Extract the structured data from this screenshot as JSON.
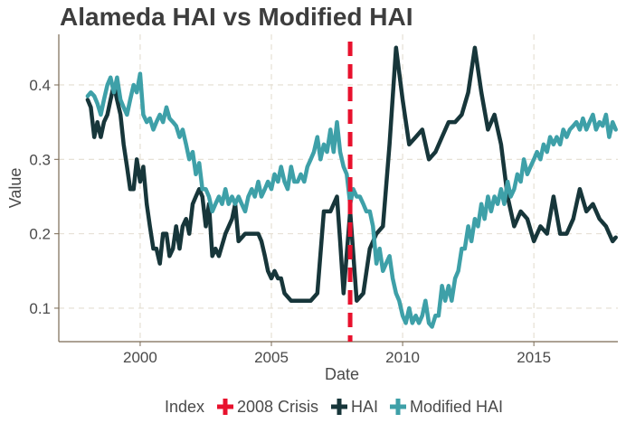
{
  "chart_data": {
    "type": "line",
    "title": "Alameda HAI vs Modified HAI",
    "xlabel": "Date",
    "ylabel": "Value",
    "xlim": [
      1996.9,
      2018.2
    ],
    "ylim": [
      0.055,
      0.468
    ],
    "x_ticks": [
      2000,
      2005,
      2010,
      2015
    ],
    "x_tick_labels": [
      "2000",
      "2005",
      "2010",
      "2015"
    ],
    "y_ticks": [
      0.1,
      0.2,
      0.3,
      0.4
    ],
    "y_tick_labels": [
      "0.1",
      "0.2",
      "0.3",
      "0.4"
    ],
    "grid": true,
    "legend": {
      "position": "bottom",
      "title": "Index",
      "entries": [
        "2008 Crisis",
        "HAI",
        "Modified HAI"
      ]
    },
    "annotations": [
      {
        "name": "2008 Crisis",
        "type": "vertical-line",
        "x": 2008.0,
        "style": "dashed",
        "color": "#e8112d"
      }
    ],
    "series": [
      {
        "name": "HAI",
        "color": "#17363a",
        "points": [
          [
            1998.0,
            0.38
          ],
          [
            1998.12,
            0.37
          ],
          [
            1998.25,
            0.33
          ],
          [
            1998.37,
            0.35
          ],
          [
            1998.5,
            0.33
          ],
          [
            1998.62,
            0.35
          ],
          [
            1998.75,
            0.36
          ],
          [
            1998.87,
            0.38
          ],
          [
            1999.0,
            0.4
          ],
          [
            1999.12,
            0.38
          ],
          [
            1999.25,
            0.36
          ],
          [
            1999.37,
            0.32
          ],
          [
            1999.5,
            0.29
          ],
          [
            1999.62,
            0.26
          ],
          [
            1999.75,
            0.26
          ],
          [
            1999.87,
            0.3
          ],
          [
            2000.0,
            0.27
          ],
          [
            2000.12,
            0.29
          ],
          [
            2000.25,
            0.24
          ],
          [
            2000.37,
            0.21
          ],
          [
            2000.5,
            0.18
          ],
          [
            2000.62,
            0.18
          ],
          [
            2000.75,
            0.16
          ],
          [
            2000.87,
            0.2
          ],
          [
            2001.0,
            0.2
          ],
          [
            2001.12,
            0.17
          ],
          [
            2001.25,
            0.18
          ],
          [
            2001.37,
            0.21
          ],
          [
            2001.5,
            0.18
          ],
          [
            2001.62,
            0.21
          ],
          [
            2001.75,
            0.22
          ],
          [
            2001.87,
            0.2
          ],
          [
            2002.0,
            0.24
          ],
          [
            2002.12,
            0.25
          ],
          [
            2002.25,
            0.26
          ],
          [
            2002.37,
            0.25
          ],
          [
            2002.5,
            0.21
          ],
          [
            2002.62,
            0.24
          ],
          [
            2002.75,
            0.17
          ],
          [
            2002.87,
            0.18
          ],
          [
            2003.0,
            0.17
          ],
          [
            2003.25,
            0.2
          ],
          [
            2003.5,
            0.22
          ],
          [
            2003.62,
            0.24
          ],
          [
            2003.75,
            0.19
          ],
          [
            2004.0,
            0.2
          ],
          [
            2004.25,
            0.2
          ],
          [
            2004.5,
            0.2
          ],
          [
            2004.62,
            0.19
          ],
          [
            2004.75,
            0.17
          ],
          [
            2004.87,
            0.15
          ],
          [
            2005.0,
            0.14
          ],
          [
            2005.12,
            0.15
          ],
          [
            2005.25,
            0.14
          ],
          [
            2005.37,
            0.14
          ],
          [
            2005.5,
            0.12
          ],
          [
            2005.75,
            0.11
          ],
          [
            2006.0,
            0.11
          ],
          [
            2006.25,
            0.11
          ],
          [
            2006.5,
            0.11
          ],
          [
            2006.75,
            0.12
          ],
          [
            2007.0,
            0.23
          ],
          [
            2007.25,
            0.23
          ],
          [
            2007.5,
            0.25
          ],
          [
            2007.62,
            0.19
          ],
          [
            2007.75,
            0.12
          ],
          [
            2008.0,
            0.23
          ],
          [
            2008.25,
            0.11
          ],
          [
            2008.5,
            0.12
          ],
          [
            2008.75,
            0.18
          ],
          [
            2009.0,
            0.2
          ],
          [
            2009.25,
            0.21
          ],
          [
            2009.5,
            0.32
          ],
          [
            2009.75,
            0.45
          ],
          [
            2010.0,
            0.38
          ],
          [
            2010.25,
            0.32
          ],
          [
            2010.5,
            0.33
          ],
          [
            2010.75,
            0.34
          ],
          [
            2011.0,
            0.3
          ],
          [
            2011.25,
            0.31
          ],
          [
            2011.5,
            0.33
          ],
          [
            2011.75,
            0.35
          ],
          [
            2012.0,
            0.35
          ],
          [
            2012.25,
            0.36
          ],
          [
            2012.5,
            0.39
          ],
          [
            2012.75,
            0.45
          ],
          [
            2013.0,
            0.39
          ],
          [
            2013.25,
            0.34
          ],
          [
            2013.5,
            0.36
          ],
          [
            2013.75,
            0.32
          ],
          [
            2014.0,
            0.25
          ],
          [
            2014.25,
            0.21
          ],
          [
            2014.5,
            0.23
          ],
          [
            2014.75,
            0.22
          ],
          [
            2015.0,
            0.19
          ],
          [
            2015.25,
            0.21
          ],
          [
            2015.5,
            0.2
          ],
          [
            2015.75,
            0.25
          ],
          [
            2016.0,
            0.2
          ],
          [
            2016.25,
            0.2
          ],
          [
            2016.5,
            0.22
          ],
          [
            2016.75,
            0.26
          ],
          [
            2017.0,
            0.23
          ],
          [
            2017.25,
            0.24
          ],
          [
            2017.5,
            0.22
          ],
          [
            2017.75,
            0.21
          ],
          [
            2018.0,
            0.19
          ],
          [
            2018.12,
            0.195
          ]
        ]
      },
      {
        "name": "Modified HAI",
        "color": "#3ea0a8",
        "points": [
          [
            1998.0,
            0.385
          ],
          [
            1998.12,
            0.39
          ],
          [
            1998.25,
            0.385
          ],
          [
            1998.37,
            0.375
          ],
          [
            1998.5,
            0.36
          ],
          [
            1998.62,
            0.38
          ],
          [
            1998.75,
            0.4
          ],
          [
            1998.87,
            0.41
          ],
          [
            1999.0,
            0.39
          ],
          [
            1999.12,
            0.41
          ],
          [
            1999.25,
            0.38
          ],
          [
            1999.37,
            0.37
          ],
          [
            1999.5,
            0.36
          ],
          [
            1999.62,
            0.38
          ],
          [
            1999.75,
            0.4
          ],
          [
            1999.87,
            0.39
          ],
          [
            2000.0,
            0.415
          ],
          [
            2000.12,
            0.36
          ],
          [
            2000.25,
            0.35
          ],
          [
            2000.37,
            0.355
          ],
          [
            2000.5,
            0.34
          ],
          [
            2000.62,
            0.35
          ],
          [
            2000.75,
            0.36
          ],
          [
            2000.87,
            0.35
          ],
          [
            2001.0,
            0.37
          ],
          [
            2001.12,
            0.355
          ],
          [
            2001.25,
            0.35
          ],
          [
            2001.37,
            0.345
          ],
          [
            2001.5,
            0.33
          ],
          [
            2001.62,
            0.34
          ],
          [
            2001.75,
            0.32
          ],
          [
            2001.87,
            0.3
          ],
          [
            2002.0,
            0.31
          ],
          [
            2002.12,
            0.28
          ],
          [
            2002.25,
            0.295
          ],
          [
            2002.37,
            0.26
          ],
          [
            2002.5,
            0.26
          ],
          [
            2002.62,
            0.25
          ],
          [
            2002.75,
            0.23
          ],
          [
            2002.87,
            0.24
          ],
          [
            2003.0,
            0.25
          ],
          [
            2003.12,
            0.24
          ],
          [
            2003.25,
            0.26
          ],
          [
            2003.37,
            0.24
          ],
          [
            2003.5,
            0.25
          ],
          [
            2003.62,
            0.24
          ],
          [
            2003.75,
            0.25
          ],
          [
            2003.87,
            0.24
          ],
          [
            2004.0,
            0.23
          ],
          [
            2004.12,
            0.25
          ],
          [
            2004.25,
            0.26
          ],
          [
            2004.37,
            0.25
          ],
          [
            2004.5,
            0.27
          ],
          [
            2004.62,
            0.25
          ],
          [
            2004.75,
            0.26
          ],
          [
            2004.87,
            0.27
          ],
          [
            2005.0,
            0.26
          ],
          [
            2005.12,
            0.28
          ],
          [
            2005.25,
            0.27
          ],
          [
            2005.37,
            0.29
          ],
          [
            2005.5,
            0.27
          ],
          [
            2005.62,
            0.26
          ],
          [
            2005.75,
            0.29
          ],
          [
            2005.87,
            0.27
          ],
          [
            2006.0,
            0.27
          ],
          [
            2006.12,
            0.28
          ],
          [
            2006.25,
            0.27
          ],
          [
            2006.37,
            0.29
          ],
          [
            2006.5,
            0.3
          ],
          [
            2006.62,
            0.31
          ],
          [
            2006.75,
            0.33
          ],
          [
            2006.87,
            0.3
          ],
          [
            2007.0,
            0.32
          ],
          [
            2007.12,
            0.31
          ],
          [
            2007.25,
            0.34
          ],
          [
            2007.37,
            0.31
          ],
          [
            2007.5,
            0.35
          ],
          [
            2007.62,
            0.31
          ],
          [
            2007.75,
            0.29
          ],
          [
            2007.87,
            0.28
          ],
          [
            2008.0,
            0.24
          ],
          [
            2008.12,
            0.26
          ],
          [
            2008.25,
            0.25
          ],
          [
            2008.37,
            0.25
          ],
          [
            2008.5,
            0.24
          ],
          [
            2008.62,
            0.23
          ],
          [
            2008.75,
            0.23
          ],
          [
            2008.87,
            0.21
          ],
          [
            2009.0,
            0.16
          ],
          [
            2009.12,
            0.18
          ],
          [
            2009.25,
            0.15
          ],
          [
            2009.37,
            0.16
          ],
          [
            2009.5,
            0.17
          ],
          [
            2009.62,
            0.14
          ],
          [
            2009.75,
            0.12
          ],
          [
            2009.87,
            0.11
          ],
          [
            2010.0,
            0.09
          ],
          [
            2010.12,
            0.08
          ],
          [
            2010.25,
            0.1
          ],
          [
            2010.37,
            0.08
          ],
          [
            2010.5,
            0.09
          ],
          [
            2010.62,
            0.08
          ],
          [
            2010.75,
            0.09
          ],
          [
            2010.87,
            0.11
          ],
          [
            2011.0,
            0.08
          ],
          [
            2011.12,
            0.075
          ],
          [
            2011.25,
            0.09
          ],
          [
            2011.37,
            0.09
          ],
          [
            2011.5,
            0.13
          ],
          [
            2011.62,
            0.11
          ],
          [
            2011.75,
            0.13
          ],
          [
            2011.87,
            0.11
          ],
          [
            2012.0,
            0.14
          ],
          [
            2012.12,
            0.15
          ],
          [
            2012.25,
            0.18
          ],
          [
            2012.37,
            0.18
          ],
          [
            2012.5,
            0.21
          ],
          [
            2012.62,
            0.19
          ],
          [
            2012.75,
            0.22
          ],
          [
            2012.87,
            0.21
          ],
          [
            2013.0,
            0.24
          ],
          [
            2013.12,
            0.22
          ],
          [
            2013.25,
            0.25
          ],
          [
            2013.37,
            0.23
          ],
          [
            2013.5,
            0.25
          ],
          [
            2013.62,
            0.24
          ],
          [
            2013.75,
            0.26
          ],
          [
            2013.87,
            0.24
          ],
          [
            2014.0,
            0.27
          ],
          [
            2014.12,
            0.25
          ],
          [
            2014.25,
            0.26
          ],
          [
            2014.37,
            0.28
          ],
          [
            2014.5,
            0.27
          ],
          [
            2014.62,
            0.3
          ],
          [
            2014.75,
            0.28
          ],
          [
            2014.87,
            0.29
          ],
          [
            2015.0,
            0.3
          ],
          [
            2015.12,
            0.31
          ],
          [
            2015.25,
            0.3
          ],
          [
            2015.37,
            0.32
          ],
          [
            2015.5,
            0.31
          ],
          [
            2015.62,
            0.33
          ],
          [
            2015.75,
            0.32
          ],
          [
            2015.87,
            0.33
          ],
          [
            2016.0,
            0.32
          ],
          [
            2016.12,
            0.34
          ],
          [
            2016.25,
            0.33
          ],
          [
            2016.37,
            0.34
          ],
          [
            2016.5,
            0.345
          ],
          [
            2016.62,
            0.35
          ],
          [
            2016.75,
            0.34
          ],
          [
            2016.87,
            0.355
          ],
          [
            2017.0,
            0.34
          ],
          [
            2017.12,
            0.35
          ],
          [
            2017.25,
            0.36
          ],
          [
            2017.37,
            0.34
          ],
          [
            2017.5,
            0.35
          ],
          [
            2017.62,
            0.345
          ],
          [
            2017.75,
            0.36
          ],
          [
            2017.87,
            0.33
          ],
          [
            2018.0,
            0.35
          ],
          [
            2018.12,
            0.34
          ]
        ]
      }
    ]
  }
}
